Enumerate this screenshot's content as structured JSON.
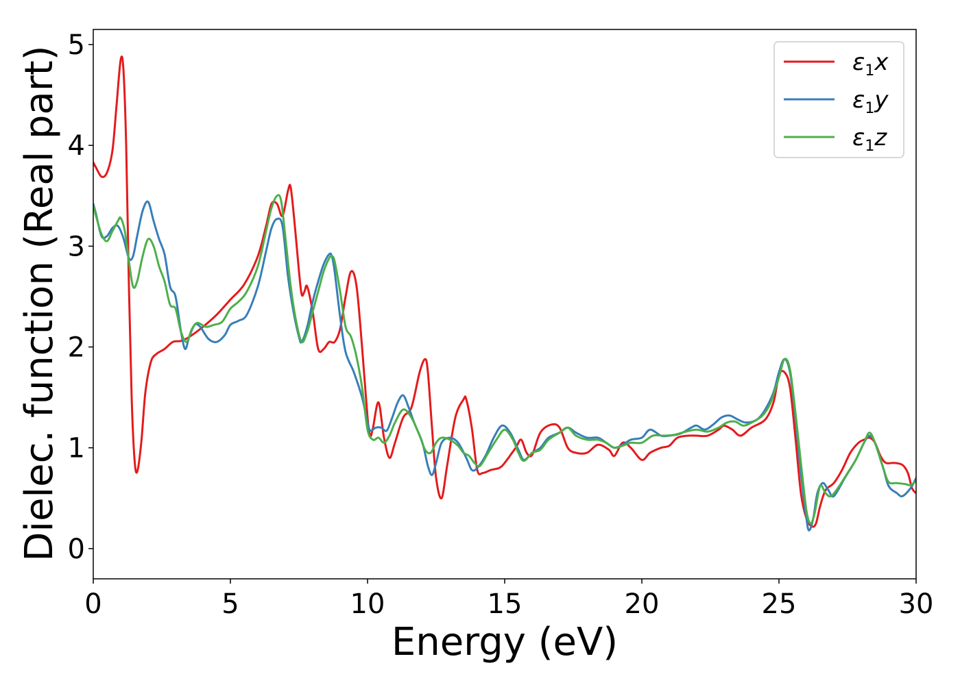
{
  "chart_data": {
    "type": "line",
    "title": "",
    "xlabel": "Energy (eV)",
    "ylabel": "Dielec. function (Real part)",
    "xlim": [
      0,
      30
    ],
    "ylim": [
      -0.3,
      5.15
    ],
    "xticks": [
      0,
      5,
      10,
      15,
      20,
      25,
      30
    ],
    "yticks": [
      0,
      1,
      2,
      3,
      4,
      5
    ],
    "grid": false,
    "legend_position": "top-right",
    "series": [
      {
        "name": "ε1x",
        "legend_base": "ε",
        "legend_sub": "1",
        "legend_tail": "x",
        "color": "#e41a1c",
        "x": [
          0,
          0.1,
          0.3,
          0.5,
          0.7,
          0.85,
          1.0,
          1.1,
          1.2,
          1.3,
          1.4,
          1.5,
          1.6,
          1.75,
          1.9,
          2.1,
          2.3,
          2.6,
          2.9,
          3.2,
          3.5,
          4.0,
          4.5,
          5.0,
          5.5,
          6.0,
          6.3,
          6.5,
          6.7,
          6.9,
          7.1,
          7.2,
          7.35,
          7.5,
          7.6,
          7.7,
          7.8,
          8.0,
          8.2,
          8.4,
          8.6,
          8.8,
          9.0,
          9.2,
          9.4,
          9.6,
          9.8,
          10.0,
          10.1,
          10.2,
          10.4,
          10.6,
          10.8,
          11.0,
          11.3,
          11.6,
          11.9,
          12.1,
          12.2,
          12.35,
          12.5,
          12.7,
          12.9,
          13.2,
          13.5,
          13.6,
          13.8,
          14.0,
          14.2,
          14.5,
          14.8,
          15.0,
          15.4,
          15.6,
          15.8,
          16.0,
          16.3,
          16.7,
          17.0,
          17.3,
          17.6,
          18.0,
          18.4,
          18.8,
          19.0,
          19.3,
          19.6,
          20.0,
          20.3,
          20.7,
          21.0,
          21.3,
          21.7,
          22.0,
          22.4,
          22.8,
          23.0,
          23.3,
          23.6,
          24.0,
          24.5,
          24.8,
          25.0,
          25.2,
          25.4,
          25.6,
          25.8,
          26.0,
          26.2,
          26.35,
          26.5,
          26.7,
          27.0,
          27.3,
          27.6,
          27.9,
          28.1,
          28.3,
          28.5,
          28.7,
          28.9,
          29.2,
          29.5,
          29.7,
          29.85,
          30.0
        ],
        "values": [
          3.83,
          3.78,
          3.69,
          3.73,
          3.95,
          4.4,
          4.85,
          4.75,
          4.0,
          2.6,
          1.5,
          0.9,
          0.76,
          1.05,
          1.55,
          1.85,
          1.93,
          1.98,
          2.05,
          2.06,
          2.1,
          2.2,
          2.32,
          2.47,
          2.62,
          2.9,
          3.2,
          3.42,
          3.42,
          3.3,
          3.55,
          3.58,
          3.2,
          2.75,
          2.52,
          2.55,
          2.6,
          2.35,
          1.98,
          1.98,
          2.05,
          2.05,
          2.18,
          2.5,
          2.75,
          2.6,
          2.0,
          1.3,
          1.12,
          1.2,
          1.45,
          1.1,
          0.9,
          1.05,
          1.3,
          1.4,
          1.75,
          1.88,
          1.75,
          1.2,
          0.7,
          0.5,
          0.82,
          1.3,
          1.48,
          1.48,
          1.2,
          0.78,
          0.75,
          0.78,
          0.8,
          0.85,
          1.0,
          1.08,
          0.95,
          0.93,
          1.15,
          1.23,
          1.2,
          1.0,
          0.95,
          0.95,
          1.03,
          0.98,
          0.92,
          1.05,
          1.0,
          0.88,
          0.95,
          1.0,
          1.02,
          1.1,
          1.12,
          1.12,
          1.12,
          1.18,
          1.22,
          1.18,
          1.12,
          1.2,
          1.28,
          1.45,
          1.72,
          1.75,
          1.6,
          1.1,
          0.55,
          0.3,
          0.22,
          0.25,
          0.42,
          0.58,
          0.65,
          0.78,
          0.95,
          1.05,
          1.08,
          1.1,
          1.05,
          0.92,
          0.85,
          0.85,
          0.83,
          0.75,
          0.6,
          0.55
        ]
      },
      {
        "name": "ε1y",
        "legend_base": "ε",
        "legend_sub": "1",
        "legend_tail": "y",
        "color": "#377eb8",
        "x": [
          0,
          0.1,
          0.3,
          0.5,
          0.7,
          0.9,
          1.1,
          1.3,
          1.45,
          1.6,
          1.8,
          2.0,
          2.2,
          2.4,
          2.6,
          2.8,
          3.0,
          3.2,
          3.35,
          3.5,
          3.7,
          3.9,
          4.2,
          4.5,
          4.8,
          5.0,
          5.3,
          5.6,
          6.0,
          6.3,
          6.5,
          6.7,
          6.9,
          7.1,
          7.3,
          7.5,
          7.6,
          7.8,
          8.0,
          8.2,
          8.4,
          8.6,
          8.7,
          8.8,
          9.0,
          9.2,
          9.5,
          9.8,
          10.0,
          10.1,
          10.3,
          10.5,
          10.7,
          10.9,
          11.1,
          11.3,
          11.5,
          11.7,
          12.0,
          12.2,
          12.35,
          12.5,
          12.7,
          13.0,
          13.3,
          13.6,
          13.8,
          14.0,
          14.3,
          14.6,
          14.9,
          15.2,
          15.5,
          15.7,
          16.0,
          16.3,
          16.6,
          17.0,
          17.3,
          17.6,
          18.0,
          18.4,
          18.7,
          19.0,
          19.3,
          19.6,
          20.0,
          20.3,
          20.7,
          21.0,
          21.4,
          21.8,
          22.0,
          22.3,
          22.6,
          22.9,
          23.2,
          23.5,
          23.8,
          24.2,
          24.5,
          24.8,
          25.0,
          25.2,
          25.4,
          25.6,
          25.8,
          26.0,
          26.1,
          26.25,
          26.4,
          26.6,
          26.8,
          27.0,
          27.4,
          27.8,
          28.1,
          28.3,
          28.5,
          28.8,
          29.0,
          29.3,
          29.5,
          29.8,
          30.0
        ],
        "values": [
          3.42,
          3.32,
          3.1,
          3.1,
          3.18,
          3.2,
          3.08,
          2.88,
          2.9,
          3.1,
          3.35,
          3.44,
          3.25,
          3.07,
          2.92,
          2.6,
          2.5,
          2.15,
          1.98,
          2.1,
          2.22,
          2.2,
          2.08,
          2.05,
          2.12,
          2.22,
          2.26,
          2.32,
          2.6,
          2.95,
          3.18,
          3.27,
          3.2,
          2.7,
          2.35,
          2.1,
          2.05,
          2.2,
          2.45,
          2.65,
          2.82,
          2.92,
          2.9,
          2.75,
          2.3,
          1.95,
          1.75,
          1.5,
          1.25,
          1.17,
          1.2,
          1.2,
          1.17,
          1.3,
          1.45,
          1.52,
          1.4,
          1.25,
          1.05,
          0.82,
          0.73,
          0.85,
          1.05,
          1.1,
          1.05,
          0.9,
          0.78,
          0.8,
          0.92,
          1.1,
          1.22,
          1.15,
          0.98,
          0.88,
          0.95,
          1.0,
          1.1,
          1.15,
          1.2,
          1.15,
          1.1,
          1.1,
          1.05,
          1.0,
          1.03,
          1.08,
          1.1,
          1.18,
          1.12,
          1.12,
          1.14,
          1.2,
          1.22,
          1.18,
          1.23,
          1.3,
          1.32,
          1.28,
          1.25,
          1.28,
          1.38,
          1.55,
          1.75,
          1.88,
          1.75,
          1.3,
          0.75,
          0.3,
          0.18,
          0.3,
          0.55,
          0.65,
          0.58,
          0.52,
          0.7,
          0.88,
          1.05,
          1.12,
          1.05,
          0.8,
          0.62,
          0.55,
          0.52,
          0.6,
          0.7
        ]
      },
      {
        "name": "ε1z",
        "legend_base": "ε",
        "legend_sub": "1",
        "legend_tail": "z",
        "color": "#4daf4a",
        "x": [
          0,
          0.1,
          0.3,
          0.5,
          0.7,
          0.9,
          1.0,
          1.15,
          1.3,
          1.45,
          1.6,
          1.8,
          2.0,
          2.2,
          2.4,
          2.6,
          2.8,
          3.0,
          3.2,
          3.4,
          3.6,
          3.8,
          4.1,
          4.4,
          4.7,
          5.0,
          5.3,
          5.6,
          6.0,
          6.3,
          6.5,
          6.7,
          6.85,
          7.0,
          7.2,
          7.4,
          7.6,
          7.8,
          8.0,
          8.2,
          8.4,
          8.6,
          8.7,
          8.8,
          9.0,
          9.2,
          9.4,
          9.6,
          9.8,
          10.0,
          10.2,
          10.4,
          10.6,
          10.8,
          11.0,
          11.3,
          11.6,
          11.9,
          12.1,
          12.3,
          12.5,
          12.7,
          13.0,
          13.3,
          13.5,
          13.7,
          13.9,
          14.1,
          14.4,
          14.7,
          15.0,
          15.3,
          15.5,
          15.7,
          16.0,
          16.3,
          16.6,
          17.0,
          17.3,
          17.6,
          18.0,
          18.4,
          18.7,
          19.0,
          19.3,
          19.6,
          20.0,
          20.4,
          20.8,
          21.2,
          21.6,
          22.0,
          22.4,
          22.8,
          23.1,
          23.4,
          23.7,
          24.0,
          24.4,
          24.7,
          25.0,
          25.2,
          25.4,
          25.6,
          25.8,
          26.0,
          26.15,
          26.3,
          26.5,
          26.7,
          26.9,
          27.2,
          27.5,
          27.8,
          28.1,
          28.3,
          28.5,
          28.8,
          29.0,
          29.3,
          29.6,
          29.8,
          30.0
        ],
        "values": [
          3.4,
          3.3,
          3.12,
          3.05,
          3.15,
          3.25,
          3.28,
          3.15,
          2.85,
          2.6,
          2.65,
          2.9,
          3.07,
          3.0,
          2.8,
          2.65,
          2.42,
          2.38,
          2.15,
          2.05,
          2.18,
          2.24,
          2.2,
          2.22,
          2.25,
          2.38,
          2.45,
          2.55,
          2.8,
          3.15,
          3.38,
          3.5,
          3.45,
          3.1,
          2.6,
          2.25,
          2.05,
          2.15,
          2.35,
          2.55,
          2.75,
          2.88,
          2.9,
          2.85,
          2.55,
          2.2,
          2.1,
          1.9,
          1.6,
          1.18,
          1.08,
          1.1,
          1.05,
          1.12,
          1.25,
          1.38,
          1.3,
          1.12,
          0.98,
          0.95,
          1.05,
          1.1,
          1.08,
          1.02,
          0.95,
          0.92,
          0.85,
          0.82,
          0.95,
          1.08,
          1.18,
          1.08,
          0.95,
          0.87,
          0.95,
          0.98,
          1.08,
          1.15,
          1.2,
          1.12,
          1.08,
          1.08,
          1.05,
          1.0,
          1.02,
          1.05,
          1.05,
          1.12,
          1.12,
          1.13,
          1.16,
          1.18,
          1.16,
          1.2,
          1.25,
          1.26,
          1.22,
          1.25,
          1.32,
          1.45,
          1.7,
          1.88,
          1.78,
          1.35,
          0.85,
          0.38,
          0.25,
          0.35,
          0.62,
          0.55,
          0.52,
          0.62,
          0.75,
          0.88,
          1.05,
          1.15,
          1.05,
          0.8,
          0.66,
          0.65,
          0.64,
          0.63,
          0.67
        ]
      }
    ]
  }
}
